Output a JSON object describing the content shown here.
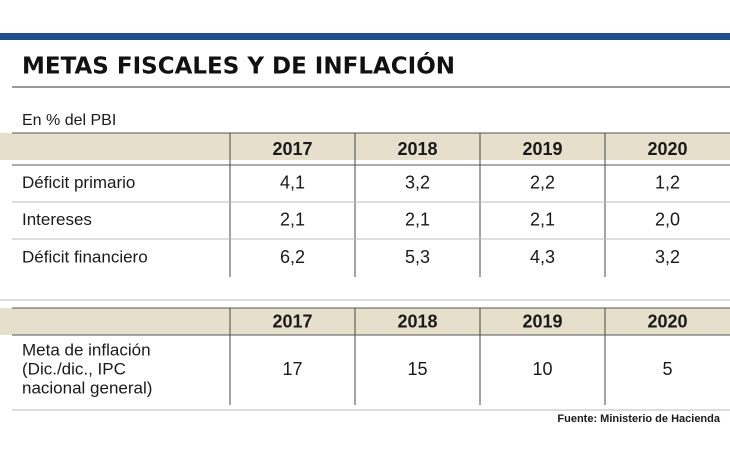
{
  "header": {
    "title": "METAS FISCALES Y DE INFLACIÓN",
    "subtitle": "En % del PBI"
  },
  "fiscal_table": {
    "columns": [
      "2017",
      "2018",
      "2019",
      "2020"
    ],
    "rows": [
      [
        "Déficit primario",
        "4,1",
        "3,2",
        "2,2",
        "1,2"
      ],
      [
        "Intereses",
        "2,1",
        "2,1",
        "2,1",
        "2,0"
      ],
      [
        "Déficit financiero",
        "6,2",
        "5,3",
        "4,3",
        "3,2"
      ]
    ]
  },
  "inflation_table": {
    "columns": [
      "2017",
      "2018",
      "2019",
      "2020"
    ],
    "rows": [
      [
        [
          "Meta de inflación",
          "(Dic./dic., IPC",
          "nacional general)"
        ],
        "17",
        "15",
        "10",
        "5"
      ]
    ]
  },
  "footer": {
    "source": "Fuente: Ministerio de Hacienda"
  }
}
